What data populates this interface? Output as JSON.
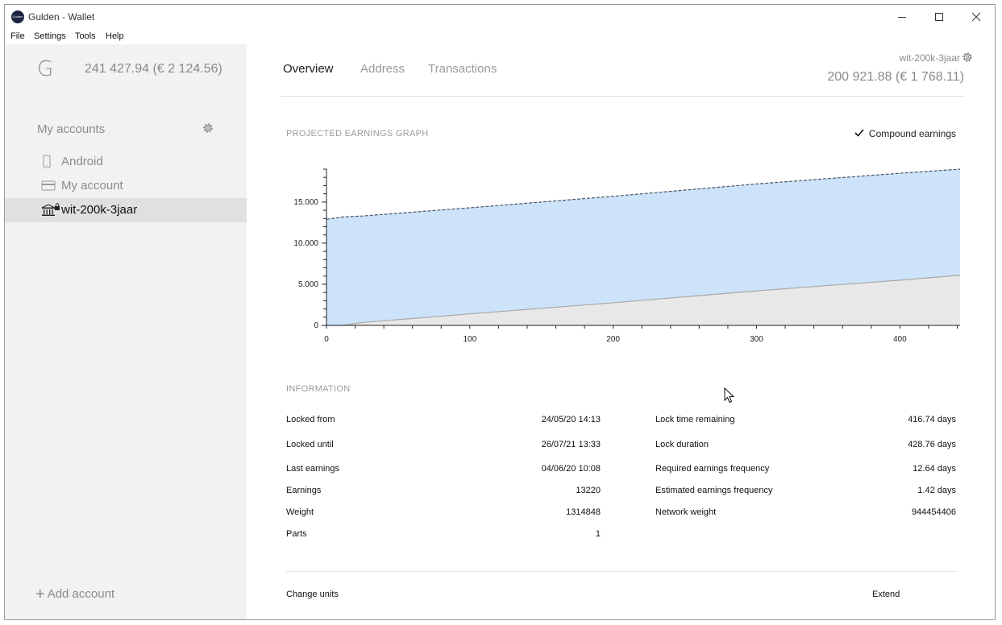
{
  "window": {
    "title": "Gulden - Wallet",
    "logo_text": "Gulden"
  },
  "menu": [
    "File",
    "Settings",
    "Tools",
    "Help"
  ],
  "sidebar": {
    "logo": "G",
    "total_balance": "241 427.94 (€ 2 124.56)",
    "accounts_heading": "My accounts",
    "accounts": [
      {
        "label": "Android",
        "icon": "phone-icon"
      },
      {
        "label": "My account",
        "icon": "card-icon"
      },
      {
        "label": "wit-200k-3jaar",
        "icon": "bank-lock-icon",
        "selected": true
      }
    ],
    "add_account": "Add account"
  },
  "main": {
    "tabs": [
      "Overview",
      "Address",
      "Transactions"
    ],
    "active_tab": "Overview",
    "account_name": "wit-200k-3jaar",
    "account_balance": "200 921.88 (€ 1 768.11)",
    "graph_title": "PROJECTED EARNINGS GRAPH",
    "compound_label": "Compound earnings",
    "compound_checked": true,
    "info_title": "INFORMATION",
    "info_left": [
      {
        "label": "Locked from",
        "value": "24/05/20 14:13"
      },
      {
        "label": "Locked until",
        "value": "26/07/21 13:33"
      },
      {
        "label": "Last earnings",
        "value": "04/06/20 10:08"
      },
      {
        "label": "Earnings",
        "value": "13220"
      },
      {
        "label": "Weight",
        "value": "1314848"
      },
      {
        "label": "Parts",
        "value": "1"
      }
    ],
    "info_right": [
      {
        "label": "Lock time remaining",
        "value": "416.74 days"
      },
      {
        "label": "Lock duration",
        "value": "428.76 days"
      },
      {
        "label": "Required earnings frequency",
        "value": "12.64 days"
      },
      {
        "label": "Estimated earnings frequency",
        "value": "1.42 days"
      },
      {
        "label": "Network weight",
        "value": "944454406"
      }
    ],
    "change_units": "Change units",
    "extend": "Extend"
  },
  "chart_data": {
    "type": "area",
    "title": "PROJECTED EARNINGS GRAPH",
    "xlim": [
      0,
      442
    ],
    "ylim": [
      0,
      19000
    ],
    "x_ticks": [
      0,
      100,
      200,
      300,
      400
    ],
    "x_tick_labels": [
      "0",
      "100",
      "200",
      "300",
      "400"
    ],
    "y_ticks": [
      0,
      5000,
      10000,
      15000
    ],
    "y_tick_labels": [
      "0",
      "5.000",
      "10.000",
      "15.000"
    ],
    "colors": {
      "compound_fill": "#cce3fa",
      "base_fill": "#e8e8e8",
      "compound_line": "#4a5566",
      "base_line": "#a9a9a9"
    },
    "series": [
      {
        "x": [
          0,
          12,
          25,
          100,
          200,
          300,
          400,
          442
        ],
        "y": [
          12900,
          13200,
          13300,
          14300,
          15700,
          17200,
          18500,
          19000
        ]
      },
      {
        "x": [
          0,
          12,
          25,
          100,
          200,
          300,
          400,
          442
        ],
        "y": [
          0,
          0,
          350,
          1400,
          2750,
          4200,
          5500,
          6100
        ]
      }
    ]
  }
}
